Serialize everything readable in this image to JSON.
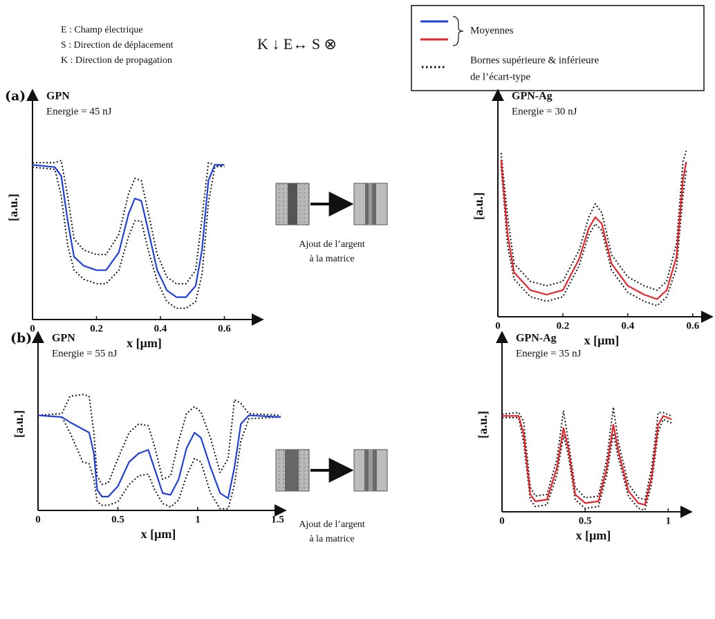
{
  "header": {
    "definitions": [
      "E : Champ électrique",
      "S : Direction de déplacement",
      "K : Direction de propagation"
    ],
    "symbols": "K ↓ E↔ S ⊗",
    "legend": {
      "means": "Moyennes",
      "bounds": [
        "Bornes supérieure & inférieure",
        "de l’écart-type"
      ],
      "means_colors": [
        "#1f3fe0",
        "#e8232a"
      ]
    }
  },
  "insets": [
    {
      "caption": [
        "Ajout de l’argent",
        "à la matrice"
      ]
    },
    {
      "caption": [
        "Ajout de l’argent",
        "à la matrice"
      ]
    }
  ],
  "chart_data": [
    {
      "type": "line",
      "panel": "(a)",
      "title": "GPN",
      "title_color": "#1a3a8a",
      "annotation": "Energie = 45 nJ",
      "xlabel": "x [μm]",
      "ylabel": "[a.u.]",
      "xlim": [
        0,
        0.72
      ],
      "ylim": [
        0,
        1
      ],
      "xticks": [
        0,
        0.2,
        0.4,
        0.6
      ],
      "x": [
        0,
        0.07,
        0.09,
        0.11,
        0.13,
        0.16,
        0.2,
        0.23,
        0.27,
        0.3,
        0.32,
        0.34,
        0.36,
        0.39,
        0.42,
        0.45,
        0.48,
        0.51,
        0.53,
        0.55,
        0.57,
        0.6
      ],
      "series": [
        {
          "color": "#1f3fe0",
          "dotted": false,
          "values": [
            0.69,
            0.68,
            0.64,
            0.44,
            0.28,
            0.24,
            0.22,
            0.22,
            0.3,
            0.47,
            0.54,
            0.53,
            0.41,
            0.22,
            0.13,
            0.1,
            0.1,
            0.15,
            0.31,
            0.62,
            0.69,
            0.69
          ]
        },
        {
          "color": "#111111",
          "dotted": true,
          "values": [
            0.7,
            0.7,
            0.71,
            0.55,
            0.36,
            0.31,
            0.29,
            0.29,
            0.38,
            0.56,
            0.63,
            0.62,
            0.49,
            0.29,
            0.19,
            0.16,
            0.16,
            0.22,
            0.45,
            0.7,
            0.69,
            0.68
          ]
        },
        {
          "color": "#111111",
          "dotted": true,
          "values": [
            0.68,
            0.67,
            0.55,
            0.33,
            0.22,
            0.18,
            0.16,
            0.16,
            0.22,
            0.37,
            0.44,
            0.44,
            0.32,
            0.17,
            0.08,
            0.05,
            0.05,
            0.08,
            0.2,
            0.52,
            0.68,
            0.69
          ]
        }
      ]
    },
    {
      "type": "line",
      "title": "GPN-Ag",
      "title_color": "#e8232a",
      "annotation": "Energie = 30 nJ",
      "xlabel": "x [μm]",
      "ylabel": "[a.u.]",
      "xlim": [
        0,
        0.66
      ],
      "ylim": [
        0,
        1
      ],
      "xticks": [
        0,
        0.2,
        0.4,
        0.6
      ],
      "x": [
        0.01,
        0.03,
        0.05,
        0.1,
        0.15,
        0.2,
        0.25,
        0.28,
        0.3,
        0.32,
        0.35,
        0.4,
        0.45,
        0.49,
        0.52,
        0.55,
        0.57,
        0.58
      ],
      "series": [
        {
          "color": "#e8232a",
          "dotted": false,
          "values": [
            0.71,
            0.37,
            0.2,
            0.12,
            0.1,
            0.12,
            0.26,
            0.4,
            0.45,
            0.42,
            0.24,
            0.14,
            0.1,
            0.08,
            0.12,
            0.27,
            0.62,
            0.7
          ]
        },
        {
          "color": "#111111",
          "dotted": true,
          "values": [
            0.74,
            0.45,
            0.24,
            0.16,
            0.14,
            0.16,
            0.3,
            0.45,
            0.51,
            0.47,
            0.28,
            0.18,
            0.14,
            0.12,
            0.16,
            0.33,
            0.7,
            0.75
          ]
        },
        {
          "color": "#111111",
          "dotted": true,
          "values": [
            0.68,
            0.32,
            0.17,
            0.09,
            0.07,
            0.09,
            0.23,
            0.37,
            0.42,
            0.39,
            0.21,
            0.11,
            0.07,
            0.05,
            0.09,
            0.22,
            0.55,
            0.66
          ]
        }
      ]
    },
    {
      "type": "line",
      "panel": "(b)",
      "title": "GPN",
      "title_color": "#1a3a8a",
      "annotation": "Energie = 55 nJ",
      "xlabel": "x [μm]",
      "ylabel": "[a.u.]",
      "xlim": [
        0,
        1.55
      ],
      "ylim": [
        0,
        1
      ],
      "xticks": [
        0,
        0.5,
        1,
        1.5
      ],
      "x": [
        0,
        0.15,
        0.2,
        0.28,
        0.32,
        0.35,
        0.37,
        0.4,
        0.44,
        0.5,
        0.57,
        0.63,
        0.69,
        0.73,
        0.78,
        0.83,
        0.88,
        0.93,
        0.98,
        1.02,
        1.08,
        1.14,
        1.19,
        1.23,
        1.27,
        1.32,
        1.52
      ],
      "series": [
        {
          "color": "#1f3fe0",
          "dotted": false,
          "values": [
            0.55,
            0.54,
            0.51,
            0.47,
            0.45,
            0.33,
            0.12,
            0.08,
            0.08,
            0.14,
            0.28,
            0.33,
            0.35,
            0.24,
            0.1,
            0.09,
            0.18,
            0.36,
            0.45,
            0.42,
            0.25,
            0.1,
            0.07,
            0.25,
            0.5,
            0.55,
            0.54
          ]
        },
        {
          "color": "#111111",
          "dotted": true,
          "values": [
            0.55,
            0.56,
            0.66,
            0.67,
            0.66,
            0.45,
            0.2,
            0.15,
            0.16,
            0.3,
            0.45,
            0.5,
            0.49,
            0.37,
            0.18,
            0.2,
            0.4,
            0.56,
            0.6,
            0.57,
            0.42,
            0.22,
            0.3,
            0.64,
            0.62,
            0.56,
            0.55
          ]
        },
        {
          "color": "#111111",
          "dotted": true,
          "values": [
            0.55,
            0.54,
            0.45,
            0.28,
            0.27,
            0.18,
            0.05,
            0.03,
            0.03,
            0.05,
            0.15,
            0.2,
            0.21,
            0.12,
            0.04,
            0.02,
            0.06,
            0.2,
            0.3,
            0.28,
            0.1,
            0.01,
            0.01,
            0.15,
            0.4,
            0.53,
            0.54
          ]
        }
      ]
    },
    {
      "type": "line",
      "title": "GPN-Ag",
      "title_color": "#e8232a",
      "annotation": "Energie = 35 nJ",
      "xlabel": "x [μm]",
      "ylabel": "[a.u.]",
      "xlim": [
        0,
        1.14
      ],
      "ylim": [
        0,
        1
      ],
      "xticks": [
        0,
        0.5,
        1
      ],
      "x": [
        0,
        0.1,
        0.13,
        0.17,
        0.2,
        0.27,
        0.33,
        0.37,
        0.4,
        0.44,
        0.5,
        0.58,
        0.63,
        0.67,
        0.7,
        0.76,
        0.82,
        0.86,
        0.9,
        0.94,
        0.97,
        1.02
      ],
      "series": [
        {
          "color": "#e8232a",
          "dotted": false,
          "values": [
            0.55,
            0.55,
            0.45,
            0.1,
            0.06,
            0.07,
            0.25,
            0.48,
            0.36,
            0.1,
            0.05,
            0.06,
            0.25,
            0.5,
            0.35,
            0.12,
            0.05,
            0.04,
            0.2,
            0.5,
            0.55,
            0.53
          ]
        },
        {
          "color": "#111111",
          "dotted": true,
          "values": [
            0.56,
            0.57,
            0.52,
            0.14,
            0.09,
            0.1,
            0.3,
            0.58,
            0.4,
            0.14,
            0.08,
            0.09,
            0.3,
            0.6,
            0.4,
            0.16,
            0.08,
            0.07,
            0.25,
            0.57,
            0.57,
            0.55
          ]
        },
        {
          "color": "#111111",
          "dotted": true,
          "values": [
            0.54,
            0.54,
            0.4,
            0.07,
            0.03,
            0.04,
            0.21,
            0.44,
            0.32,
            0.07,
            0.02,
            0.03,
            0.21,
            0.45,
            0.31,
            0.09,
            0.02,
            0.01,
            0.16,
            0.46,
            0.53,
            0.51
          ]
        }
      ]
    }
  ]
}
